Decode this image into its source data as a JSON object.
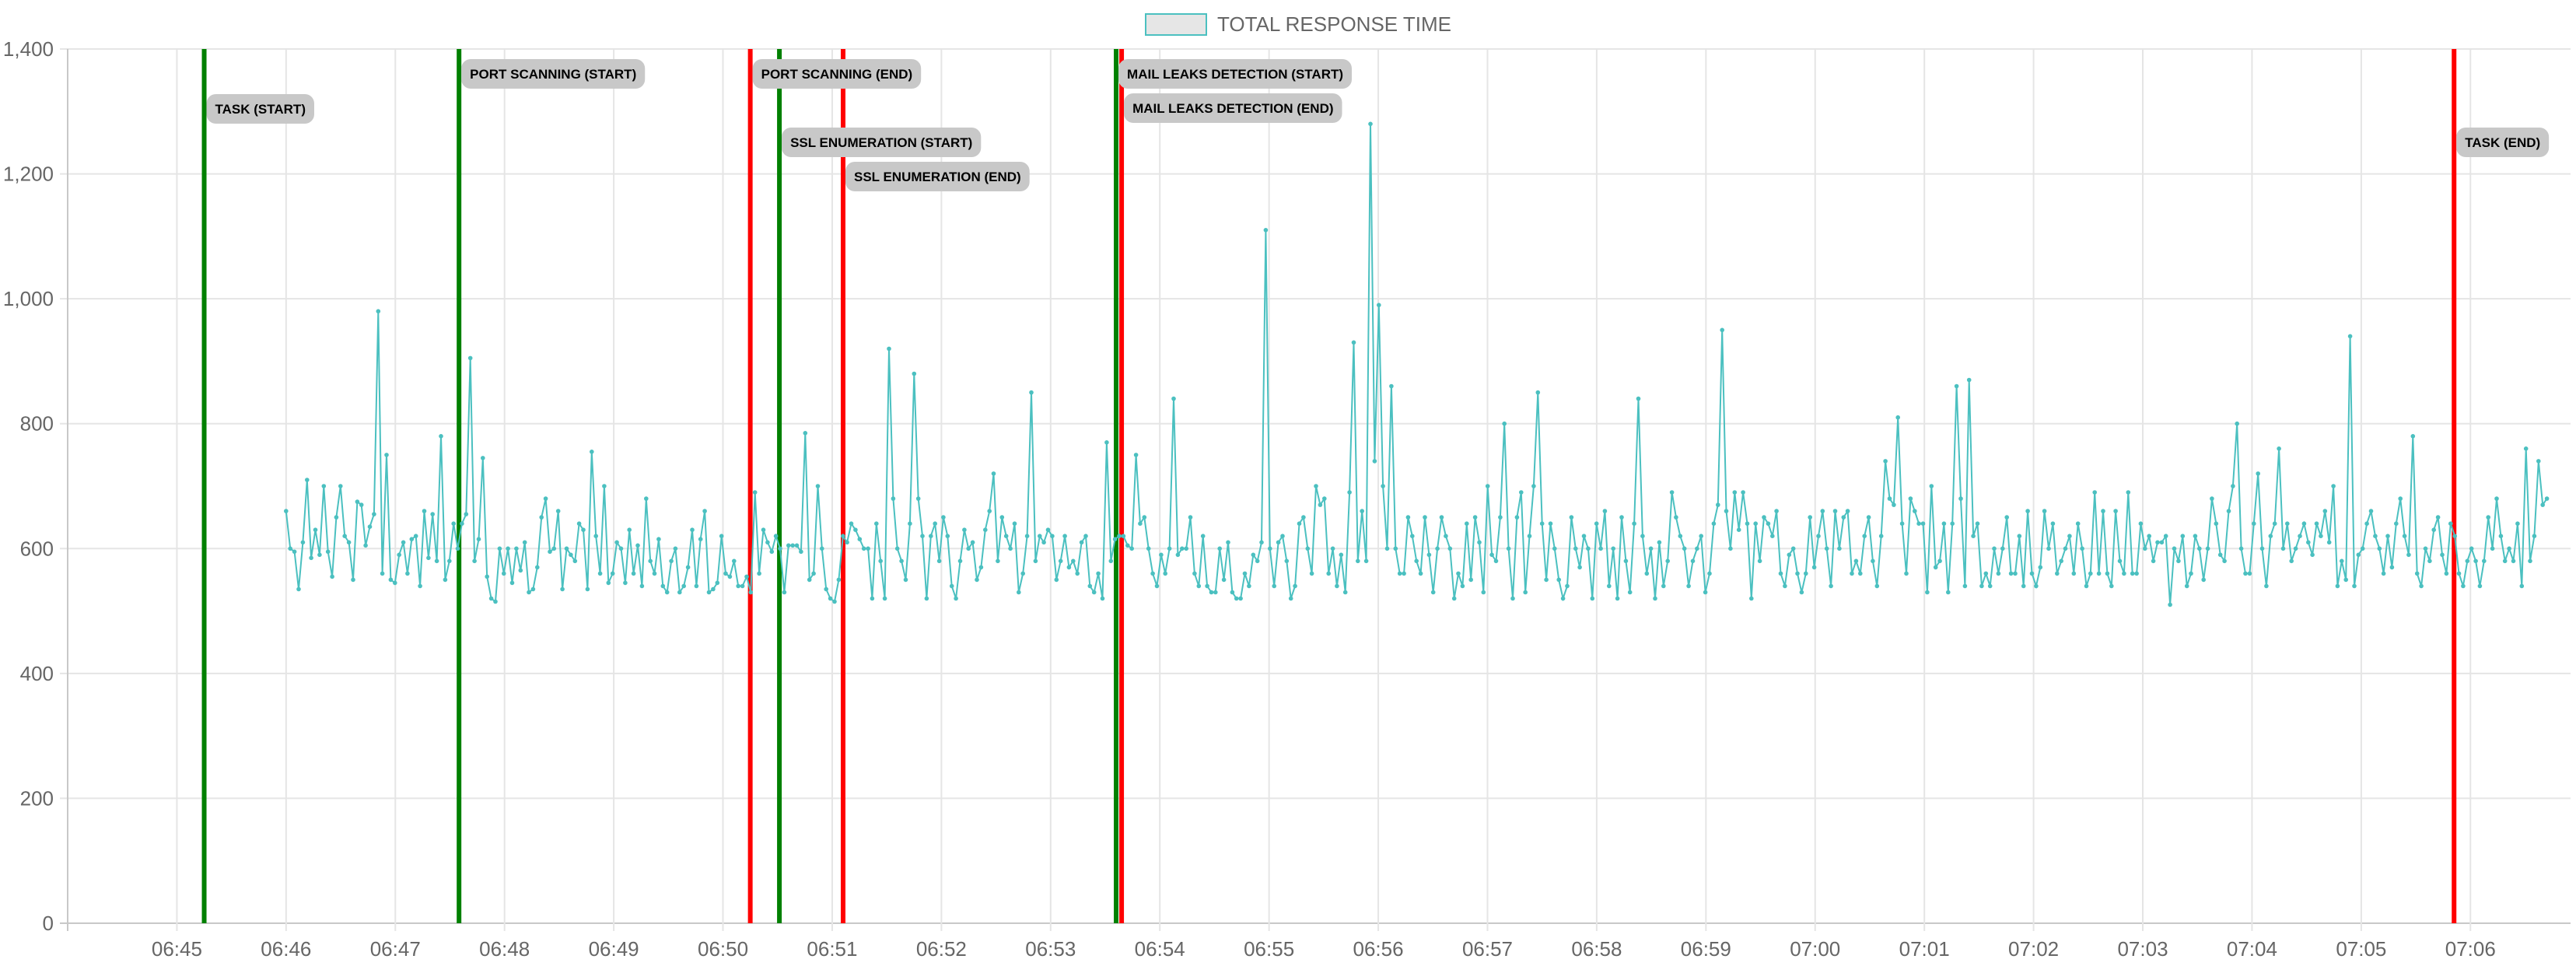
{
  "chart_data": {
    "type": "line",
    "x_axis": {
      "unit": "time",
      "min": "06:44:00",
      "max": "07:06:55",
      "tick_labels": [
        "06:45",
        "06:46",
        "06:47",
        "06:48",
        "06:49",
        "06:50",
        "06:51",
        "06:52",
        "06:53",
        "06:54",
        "06:55",
        "06:56",
        "06:57",
        "06:58",
        "06:59",
        "07:00",
        "07:01",
        "07:02",
        "07:03",
        "07:04",
        "07:05",
        "07:06"
      ],
      "grid": true
    },
    "y_axis": {
      "min": 0,
      "max": 1400,
      "step": 200,
      "tick_labels": [
        "0",
        "200",
        "400",
        "600",
        "800",
        "1,000",
        "1,200",
        "1,400"
      ],
      "grid": true
    },
    "legend": {
      "position": "top-center"
    },
    "series": [
      {
        "name": "TOTAL RESPONSE TIME",
        "color": "#4bc0c0",
        "start_time": "06:46:00",
        "interval_seconds": 2.3,
        "values": [
          660,
          600,
          595,
          535,
          610,
          710,
          585,
          630,
          590,
          700,
          595,
          555,
          650,
          700,
          620,
          610,
          550,
          675,
          670,
          605,
          635,
          655,
          980,
          560,
          750,
          550,
          545,
          590,
          610,
          560,
          615,
          620,
          540,
          660,
          585,
          655,
          580,
          780,
          550,
          580,
          640,
          600,
          640,
          655,
          905,
          580,
          615,
          745,
          555,
          520,
          515,
          600,
          560,
          600,
          545,
          600,
          565,
          610,
          530,
          535,
          570,
          650,
          680,
          595,
          600,
          660,
          535,
          600,
          590,
          580,
          640,
          630,
          535,
          755,
          620,
          560,
          700,
          545,
          560,
          610,
          600,
          545,
          630,
          560,
          605,
          540,
          680,
          580,
          560,
          615,
          540,
          530,
          580,
          600,
          530,
          540,
          570,
          630,
          540,
          615,
          660,
          530,
          535,
          545,
          620,
          560,
          555,
          580,
          540,
          540,
          555,
          530,
          690,
          560,
          630,
          610,
          595,
          620,
          600,
          530,
          605,
          605,
          605,
          595,
          785,
          550,
          560,
          700,
          600,
          535,
          520,
          515,
          550,
          620,
          610,
          640,
          630,
          615,
          600,
          600,
          520,
          640,
          580,
          520,
          920,
          680,
          600,
          580,
          550,
          640,
          880,
          680,
          620,
          520,
          620,
          640,
          580,
          650,
          620,
          540,
          520,
          580,
          630,
          600,
          610,
          550,
          570,
          630,
          660,
          720,
          580,
          650,
          620,
          600,
          640,
          530,
          560,
          620,
          850,
          580,
          620,
          610,
          630,
          620,
          550,
          580,
          620,
          570,
          580,
          560,
          610,
          620,
          540,
          530,
          560,
          520,
          770,
          580,
          615,
          620,
          620,
          605,
          600,
          750,
          640,
          650,
          600,
          560,
          540,
          590,
          560,
          600,
          840,
          590,
          600,
          600,
          650,
          560,
          540,
          620,
          540,
          530,
          530,
          600,
          550,
          610,
          530,
          520,
          520,
          560,
          540,
          590,
          580,
          610,
          1110,
          600,
          540,
          610,
          620,
          580,
          520,
          540,
          640,
          650,
          600,
          560,
          700,
          670,
          680,
          560,
          600,
          540,
          590,
          530,
          690,
          930,
          580,
          660,
          580,
          1280,
          740,
          990,
          700,
          600,
          860,
          600,
          560,
          560,
          650,
          620,
          580,
          560,
          650,
          590,
          530,
          600,
          650,
          620,
          600,
          520,
          560,
          540,
          640,
          550,
          650,
          610,
          530,
          700,
          590,
          580,
          650,
          800,
          600,
          520,
          650,
          690,
          530,
          620,
          700,
          850,
          640,
          550,
          640,
          600,
          550,
          520,
          540,
          650,
          600,
          570,
          620,
          600,
          520,
          640,
          600,
          660,
          540,
          600,
          520,
          650,
          580,
          530,
          640,
          840,
          620,
          560,
          600,
          520,
          610,
          540,
          580,
          690,
          650,
          620,
          600,
          540,
          580,
          600,
          620,
          530,
          560,
          640,
          670,
          950,
          660,
          600,
          690,
          630,
          690,
          640,
          520,
          640,
          580,
          650,
          640,
          620,
          660,
          560,
          540,
          590,
          600,
          560,
          530,
          560,
          650,
          570,
          620,
          660,
          600,
          540,
          660,
          600,
          650,
          660,
          560,
          580,
          560,
          620,
          650,
          580,
          540,
          620,
          740,
          680,
          670,
          810,
          640,
          560,
          680,
          660,
          640,
          640,
          530,
          700,
          570,
          580,
          640,
          530,
          640,
          860,
          680,
          540,
          870,
          620,
          640,
          540,
          560,
          540,
          600,
          560,
          600,
          650,
          560,
          560,
          620,
          540,
          660,
          560,
          540,
          570,
          660,
          600,
          640,
          560,
          580,
          600,
          620,
          560,
          640,
          600,
          540,
          560,
          690,
          560,
          660,
          560,
          540,
          660,
          580,
          560,
          690,
          560,
          560,
          640,
          600,
          620,
          580,
          610,
          610,
          620,
          510,
          600,
          580,
          620,
          540,
          560,
          620,
          600,
          550,
          600,
          680,
          640,
          590,
          580,
          660,
          700,
          800,
          600,
          560,
          560,
          640,
          720,
          600,
          540,
          620,
          640,
          760,
          600,
          640,
          580,
          600,
          620,
          640,
          610,
          590,
          640,
          620,
          660,
          610,
          700,
          540,
          580,
          550,
          940,
          540,
          590,
          600,
          640,
          660,
          620,
          600,
          560,
          620,
          570,
          640,
          680,
          620,
          590,
          780,
          560,
          540,
          600,
          580,
          630,
          650,
          590,
          560,
          640,
          620,
          560,
          540,
          580,
          600,
          580,
          540,
          580,
          650,
          600,
          680,
          620,
          580,
          600,
          580,
          640,
          540,
          760,
          580,
          620,
          740,
          670,
          680
        ]
      }
    ],
    "annotations": [
      {
        "label": "TASK (START)",
        "time": "06:45:15",
        "color": "#008000"
      },
      {
        "label": "PORT SCANNING (START)",
        "time": "06:47:35",
        "color": "#008000"
      },
      {
        "label": "PORT SCANNING (END)",
        "time": "06:50:15",
        "color": "#ff0000"
      },
      {
        "label": "SSL ENUMERATION (START)",
        "time": "06:50:31",
        "color": "#008000"
      },
      {
        "label": "SSL ENUMERATION (END)",
        "time": "06:51:06",
        "color": "#ff0000"
      },
      {
        "label": "MAIL LEAKS DETECTION (START)",
        "time": "06:53:36",
        "color": "#008000"
      },
      {
        "label": "MAIL LEAKS DETECTION (END)",
        "time": "06:53:39",
        "color": "#ff0000"
      },
      {
        "label": "TASK (END)",
        "time": "07:05:51",
        "color": "#ff0000"
      }
    ]
  }
}
